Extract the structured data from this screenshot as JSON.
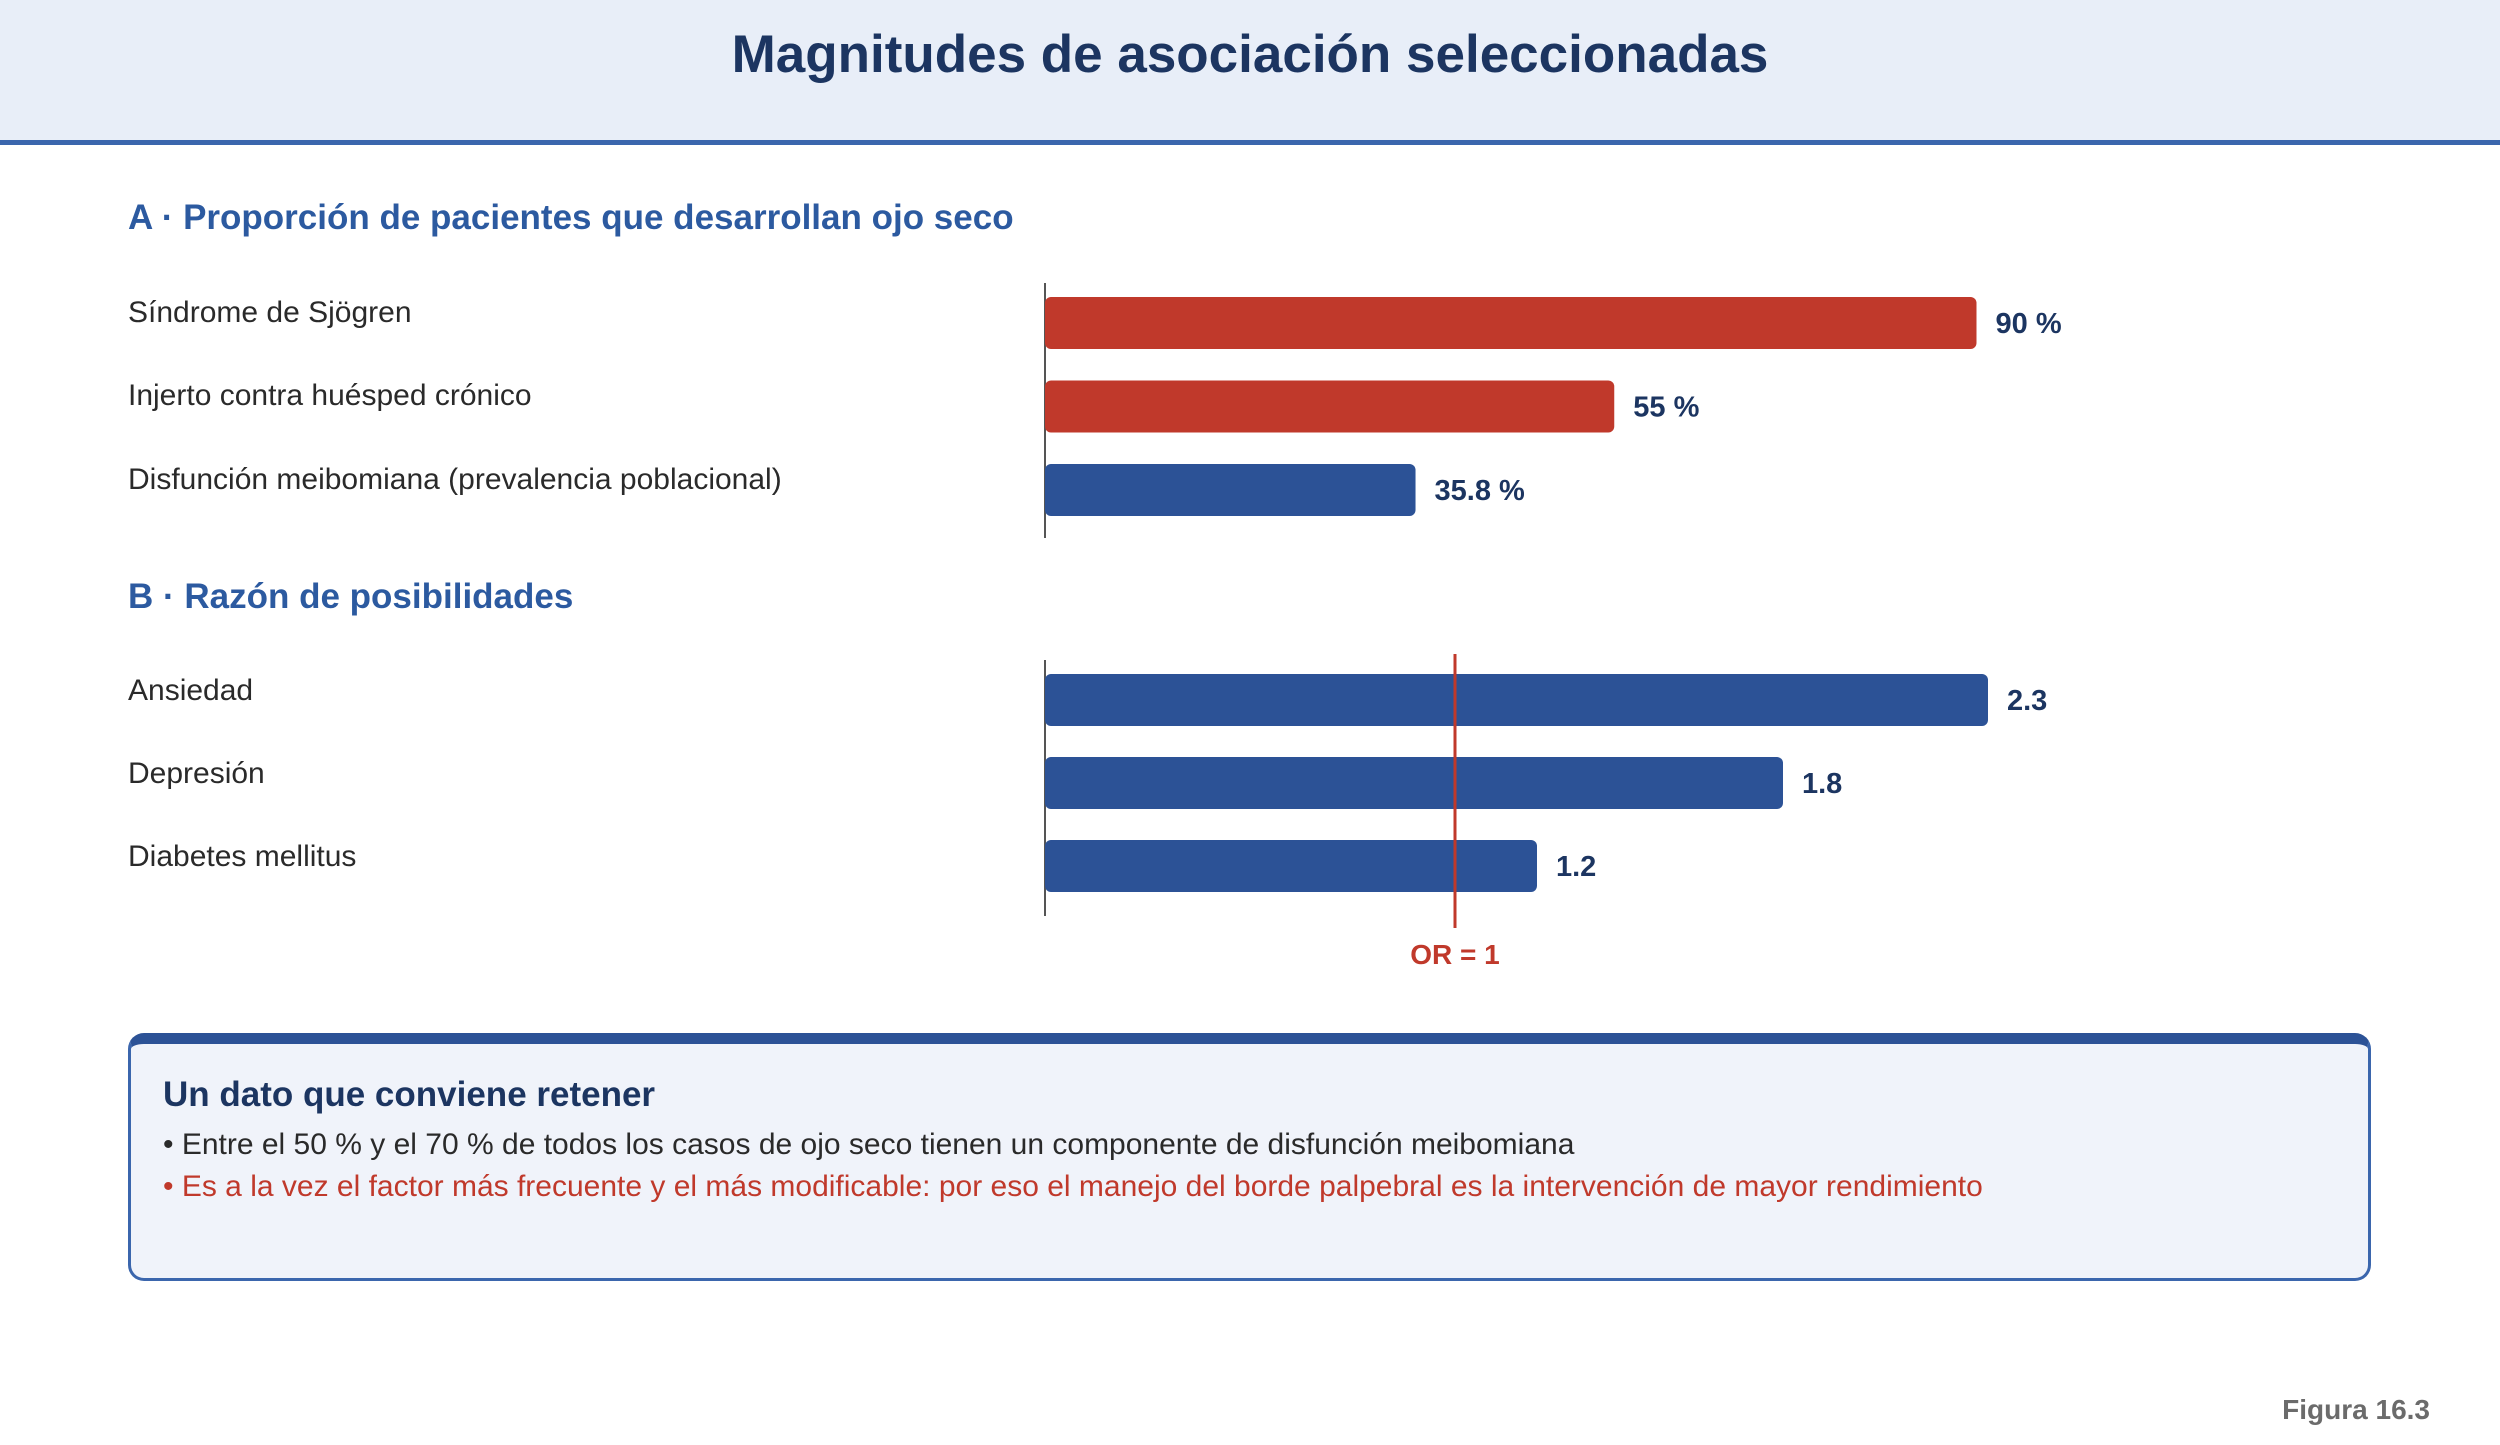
{
  "header": {
    "title": "Magnitudes de asociación seleccionadas"
  },
  "colors": {
    "accent_red": "#c0392b",
    "accent_blue": "#2c5296",
    "header_bg": "#e8eef8"
  },
  "chart_data": [
    {
      "type": "bar",
      "orientation": "horizontal",
      "title": "A · Proporción de pacientes que desarrollan ojo seco",
      "categories": [
        "Síndrome de Sjögren",
        "Injerto contra huésped crónico",
        "Disfunción meibomiana (prevalencia poblacional)"
      ],
      "values": [
        90,
        55,
        35.8
      ],
      "value_labels": [
        "90 %",
        "55 %",
        "35.8 %"
      ],
      "bar_colors": [
        "#c0392b",
        "#c0392b",
        "#2c5296"
      ],
      "xlim": [
        0,
        100
      ]
    },
    {
      "type": "bar",
      "orientation": "horizontal",
      "title": "B · Razón de posibilidades",
      "categories": [
        "Ansiedad",
        "Depresión",
        "Diabetes mellitus"
      ],
      "values": [
        2.3,
        1.8,
        1.2
      ],
      "value_labels": [
        "2.3",
        "1.8",
        "1.2"
      ],
      "bar_colors": [
        "#2c5296",
        "#2c5296",
        "#2c5296"
      ],
      "xlim": [
        0,
        2.3
      ],
      "reference_line": {
        "value": 1,
        "label": "OR = 1"
      }
    }
  ],
  "note": {
    "title": "Un dato que conviene retener",
    "bullet_1": "• Entre el 50 % y el 70 % de todos los casos de ojo seco tienen un componente de disfunción meibomiana",
    "bullet_2": "• Es a la vez el factor más frecuente y el más modificable: por eso el manejo del borde palpebral es la intervención de mayor rendimiento"
  },
  "figure_label": "Figura 16.3"
}
